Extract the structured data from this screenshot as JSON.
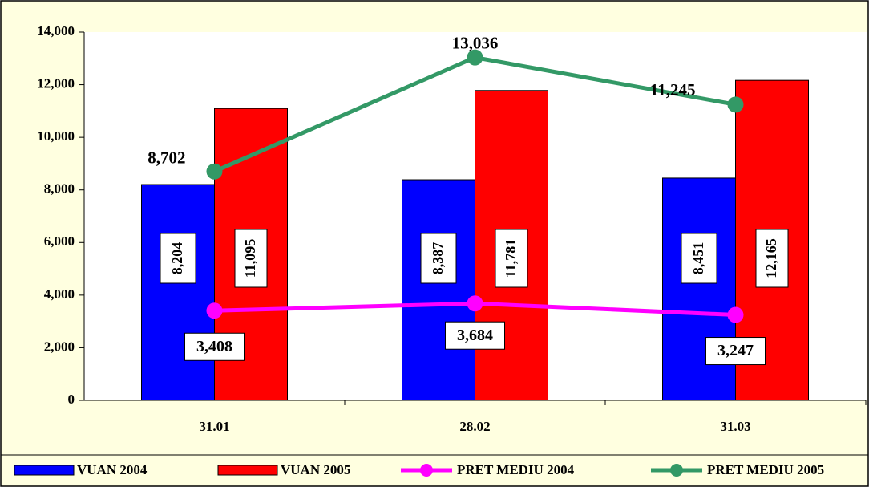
{
  "chart_data": {
    "type": "bar",
    "categories": [
      "31.01",
      "28.02",
      "31.03"
    ],
    "series": [
      {
        "name": "VUAN 2004",
        "type": "bar",
        "color": "#0000ff",
        "values": [
          8204,
          8387,
          8451
        ],
        "value_labels": [
          "8,204",
          "8,387",
          "8,451"
        ]
      },
      {
        "name": "VUAN 2005",
        "type": "bar",
        "color": "#ff0000",
        "values": [
          11095,
          11781,
          12165
        ],
        "value_labels": [
          "11,095",
          "11,781",
          "12,165"
        ]
      },
      {
        "name": "PRET MEDIU 2004",
        "type": "line",
        "color": "#ff00ff",
        "values": [
          3408,
          3684,
          3247
        ],
        "value_labels": [
          "3,408",
          "3,684",
          "3,247"
        ]
      },
      {
        "name": "PRET MEDIU 2005",
        "type": "line",
        "color": "#339966",
        "values": [
          8702,
          13036,
          11245
        ],
        "value_labels": [
          "8,702",
          "13,036",
          "11,245"
        ]
      }
    ],
    "ylim": [
      0,
      14000
    ],
    "yticks": [
      0,
      {
        "value": 2000,
        "label": "2,000"
      },
      {
        "value": 4000,
        "label": "4,000"
      },
      {
        "value": 6000,
        "label": "6,000"
      },
      {
        "value": 8000,
        "label": "8,000"
      },
      {
        "value": 10000,
        "label": "10,000"
      },
      {
        "value": 12000,
        "label": "12,000"
      },
      {
        "value": 14000,
        "label": "14,000"
      }
    ],
    "legend": "bottom"
  }
}
